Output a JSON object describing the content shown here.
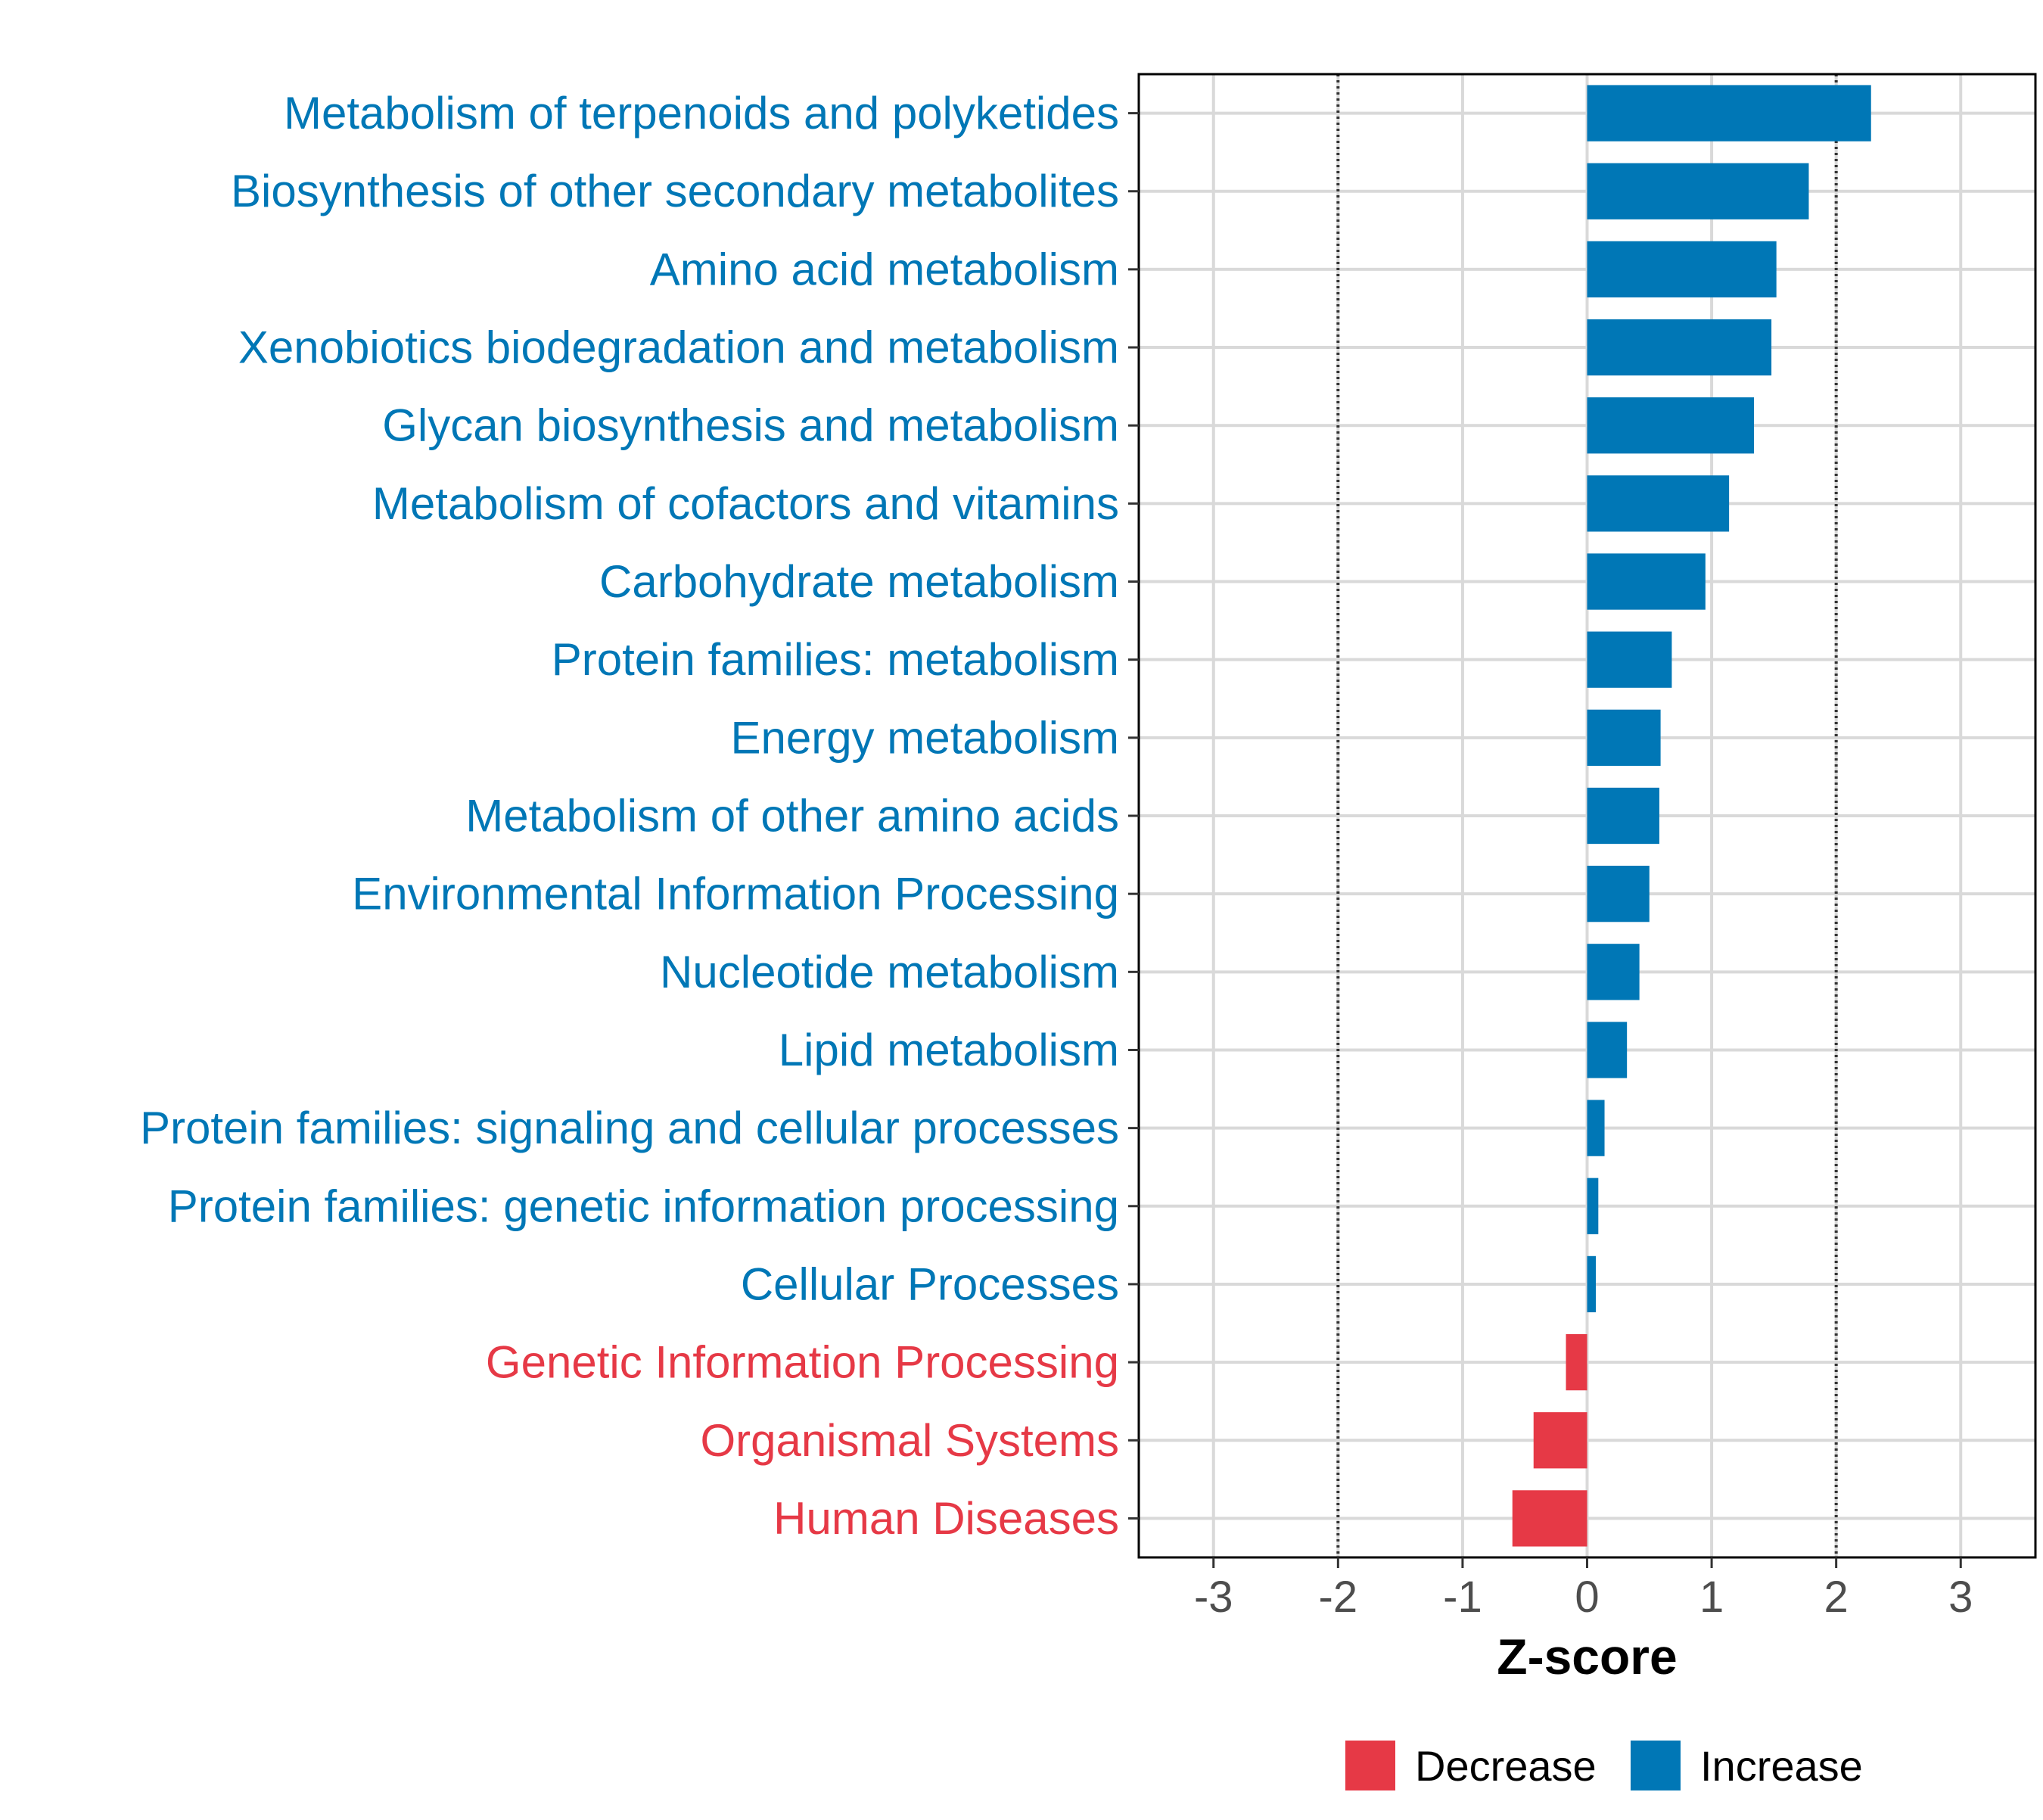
{
  "chart_data": {
    "type": "bar",
    "orientation": "horizontal",
    "xlabel": "Z-score",
    "xlim": [
      -3.6,
      3.6
    ],
    "xticks": [
      -3,
      -2,
      -1,
      0,
      1,
      2,
      3
    ],
    "xtick_labels": [
      "-3",
      "-2",
      "-1",
      "0",
      "1",
      "2",
      "3"
    ],
    "reference_lines": [
      -2,
      2
    ],
    "grid": true,
    "colors": {
      "Increase": "#0077B6",
      "Decrease": "#E63946"
    },
    "legend": {
      "position": "bottom",
      "items": [
        "Decrease",
        "Increase"
      ]
    },
    "categories": [
      "Metabolism of terpenoids and polyketides",
      "Biosynthesis of other secondary metabolites",
      "Amino acid metabolism",
      "Xenobiotics biodegradation and metabolism",
      "Glycan biosynthesis and metabolism",
      "Metabolism of cofactors and vitamins",
      "Carbohydrate metabolism",
      "Protein families: metabolism",
      "Energy metabolism",
      "Metabolism of other amino acids",
      "Environmental Information Processing",
      "Nucleotide metabolism",
      "Lipid metabolism",
      "Protein families: signaling and cellular processes",
      "Protein families: genetic information processing",
      "Cellular Processes",
      "Genetic Information Processing",
      "Organismal Systems",
      "Human Diseases"
    ],
    "values": [
      2.28,
      1.78,
      1.52,
      1.48,
      1.34,
      1.14,
      0.95,
      0.68,
      0.59,
      0.58,
      0.5,
      0.42,
      0.32,
      0.14,
      0.09,
      0.07,
      -0.17,
      -0.43,
      -0.6
    ],
    "groups": [
      "Increase",
      "Increase",
      "Increase",
      "Increase",
      "Increase",
      "Increase",
      "Increase",
      "Increase",
      "Increase",
      "Increase",
      "Increase",
      "Increase",
      "Increase",
      "Increase",
      "Increase",
      "Increase",
      "Decrease",
      "Decrease",
      "Decrease"
    ]
  }
}
